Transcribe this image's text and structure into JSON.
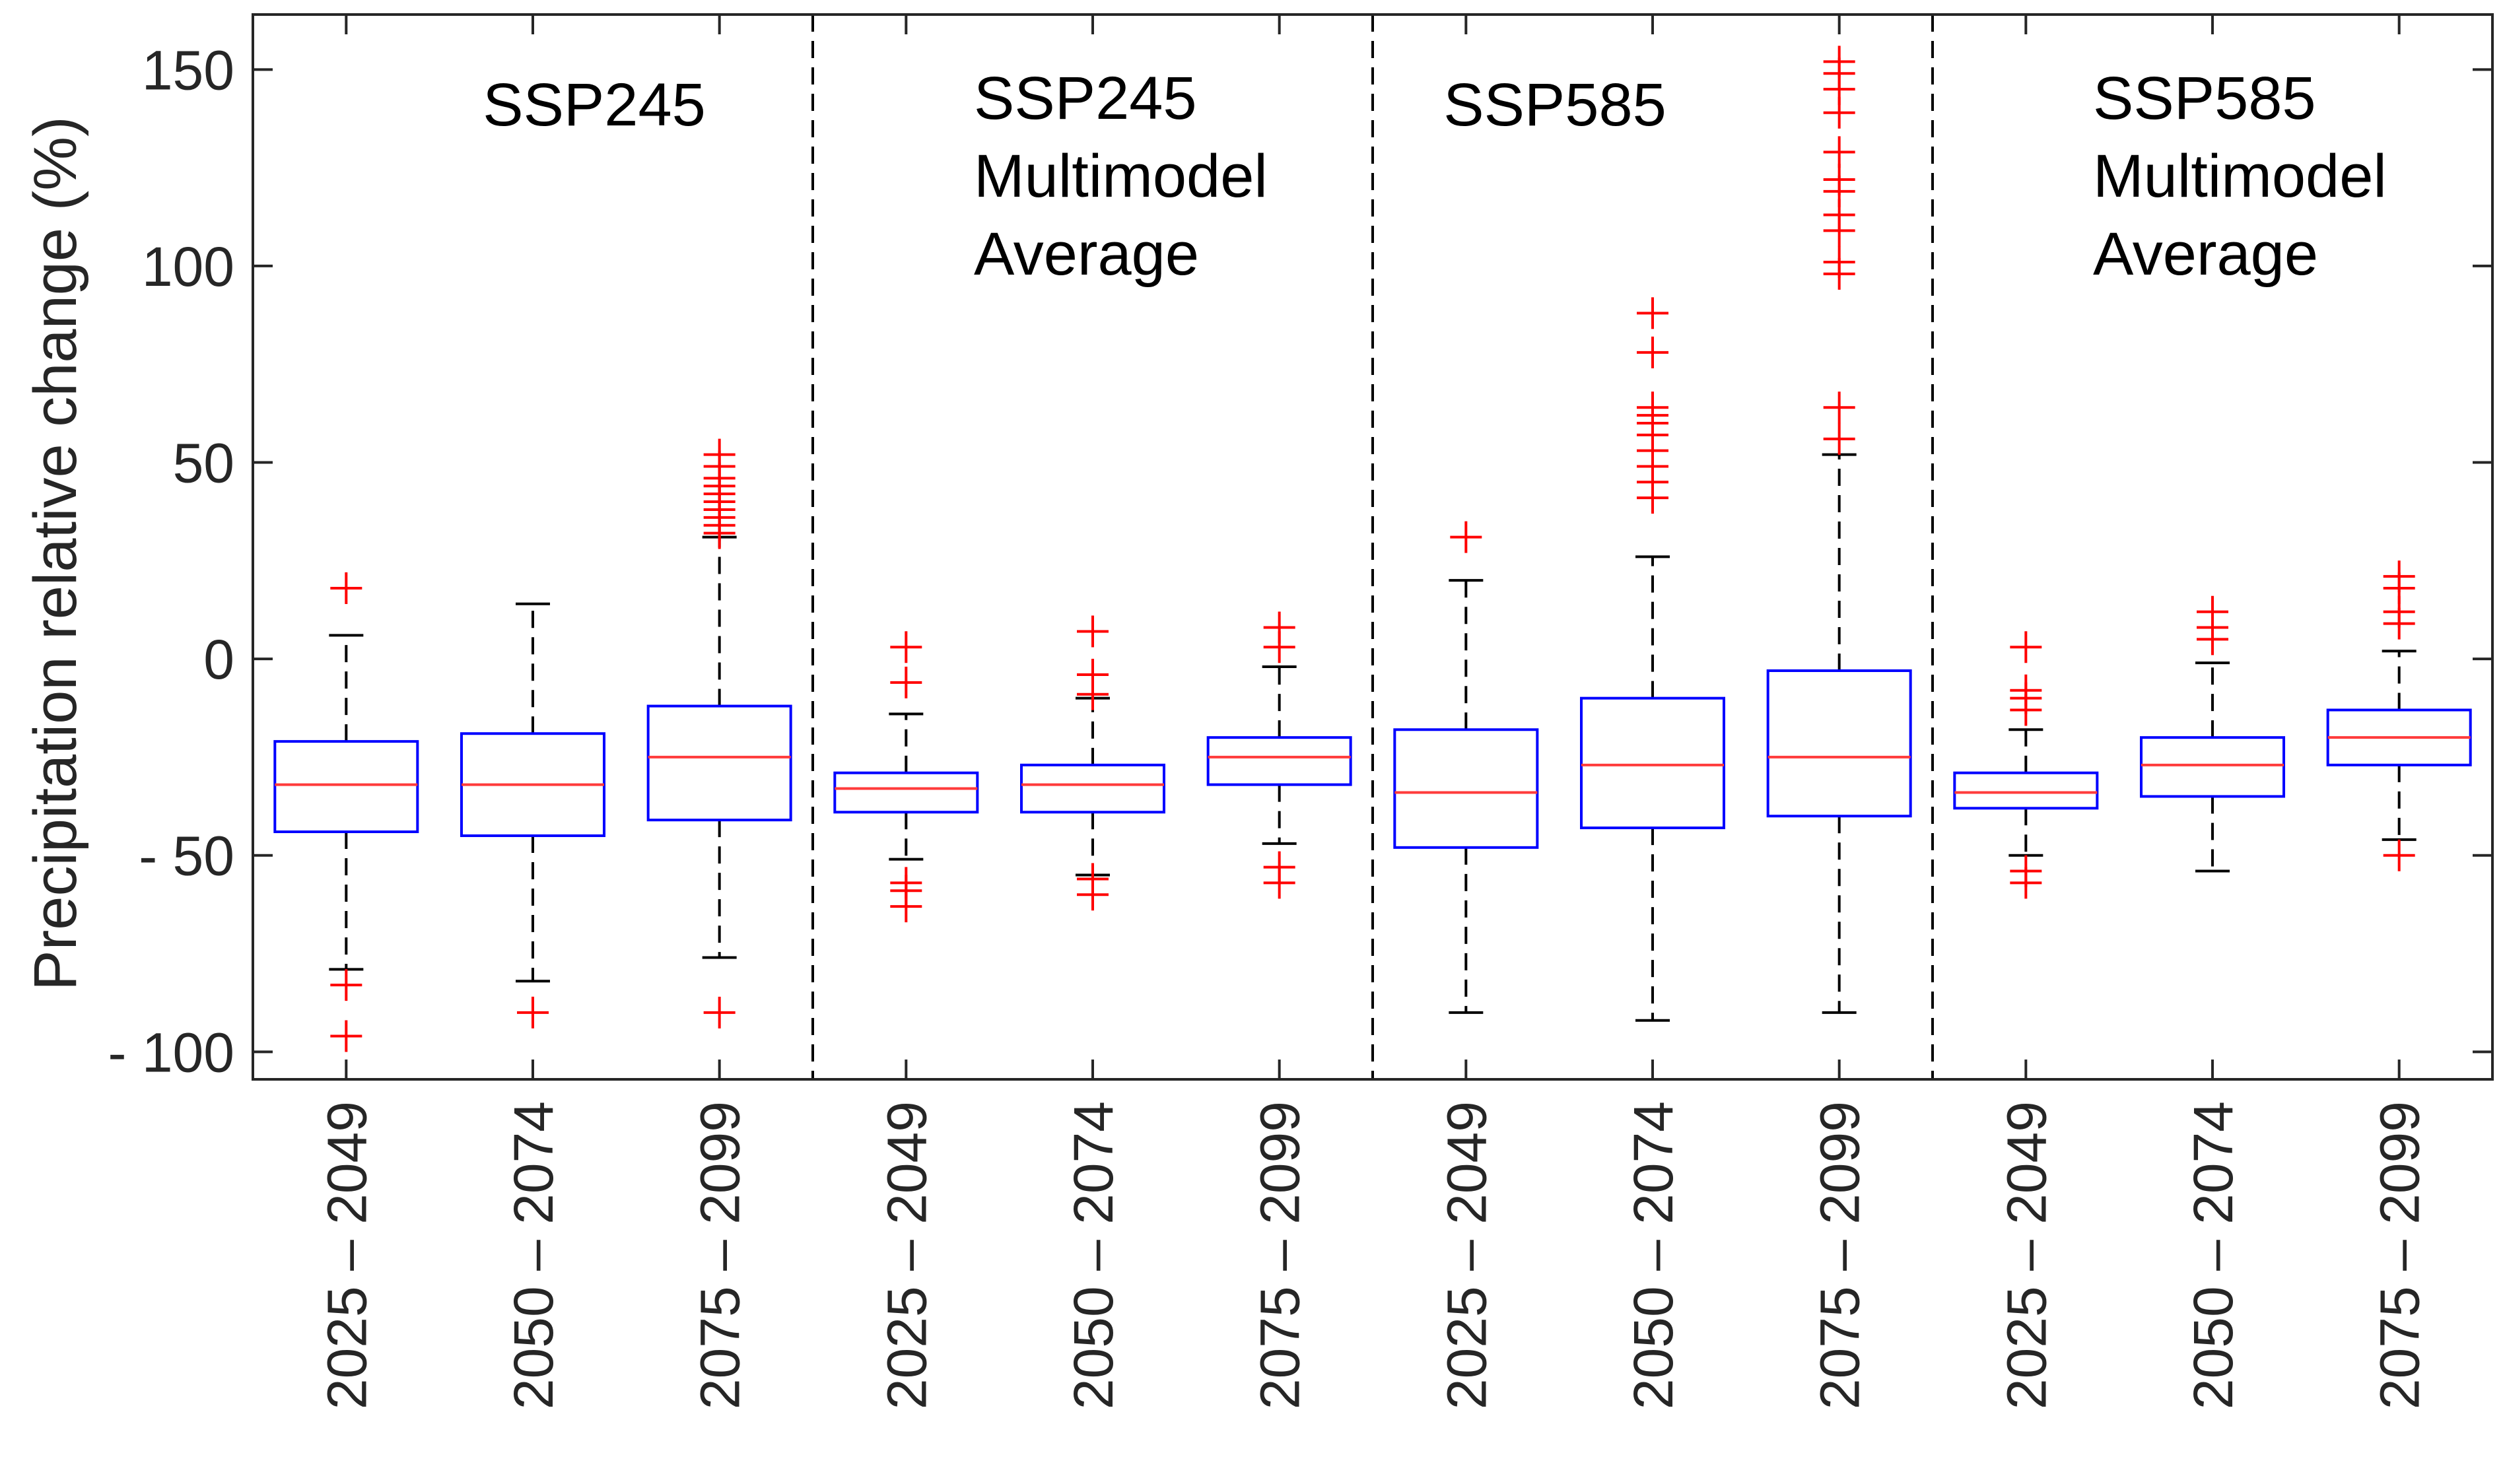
{
  "chart_data": {
    "type": "boxplot",
    "title": "",
    "xlabel": "",
    "ylabel": "Precipitation relative change (%)",
    "ylim": [
      -107,
      164
    ],
    "yticks": [
      150,
      100,
      50,
      0,
      -50,
      -100
    ],
    "ytick_labels": [
      "150",
      "100",
      "50",
      "0",
      "- 50",
      "- 100"
    ],
    "grid": false,
    "colors": {
      "box": "#0000ff",
      "median": "#ff3b3b",
      "whisker": "#000000",
      "outlier": "#ff0000",
      "separator": "#000000",
      "axis": "#262626"
    },
    "panels": [
      {
        "label_lines": [
          "SSP245"
        ]
      },
      {
        "label_lines": [
          "SSP245",
          "Multimodel",
          "Average"
        ]
      },
      {
        "label_lines": [
          "SSP585"
        ]
      },
      {
        "label_lines": [
          "SSP585",
          "Multimodel",
          "Average"
        ]
      }
    ],
    "categories": [
      "2025 – 2049",
      "2050 – 2074",
      "2075 – 2099",
      "2025 – 2049",
      "2050 – 2074",
      "2075 – 2099",
      "2025 – 2049",
      "2050 – 2074",
      "2075 – 2099",
      "2025 – 2049",
      "2050 – 2074",
      "2075 – 2099"
    ],
    "boxes": [
      {
        "panel": "SSP245",
        "period": "2025 – 2049",
        "whisker_low": -79,
        "q1": -44,
        "median": -32,
        "q3": -21,
        "whisker_high": 6,
        "outliers": [
          18,
          -83,
          -96
        ]
      },
      {
        "panel": "SSP245",
        "period": "2050 – 2074",
        "whisker_low": -82,
        "q1": -45,
        "median": -32,
        "q3": -19,
        "whisker_high": 14,
        "outliers": [
          -90
        ]
      },
      {
        "panel": "SSP245",
        "period": "2075 – 2099",
        "whisker_low": -76,
        "q1": -41,
        "median": -25,
        "q3": -12,
        "whisker_high": 31,
        "outliers": [
          32,
          34,
          36,
          38,
          40,
          42,
          44,
          46,
          49,
          52,
          -90
        ]
      },
      {
        "panel": "SSP245 Multimodel Average",
        "period": "2025 – 2049",
        "whisker_low": -51,
        "q1": -39,
        "median": -33,
        "q3": -29,
        "whisker_high": -14,
        "outliers": [
          3,
          -6,
          -57,
          -59,
          -63
        ]
      },
      {
        "panel": "SSP245 Multimodel Average",
        "period": "2050 – 2074",
        "whisker_low": -55,
        "q1": -39,
        "median": -32,
        "q3": -27,
        "whisker_high": -10,
        "outliers": [
          7,
          -4,
          -9,
          -56,
          -60
        ]
      },
      {
        "panel": "SSP245 Multimodel Average",
        "period": "2075 – 2099",
        "whisker_low": -47,
        "q1": -32,
        "median": -25,
        "q3": -20,
        "whisker_high": -2,
        "outliers": [
          8,
          3,
          -53,
          -57
        ]
      },
      {
        "panel": "SSP585",
        "period": "2025 – 2049",
        "whisker_low": -90,
        "q1": -48,
        "median": -34,
        "q3": -18,
        "whisker_high": 20,
        "outliers": [
          31
        ]
      },
      {
        "panel": "SSP585",
        "period": "2050 – 2074",
        "whisker_low": -92,
        "q1": -43,
        "median": -27,
        "q3": -10,
        "whisker_high": 26,
        "outliers": [
          41,
          45,
          49,
          53,
          57,
          60,
          62,
          64,
          78,
          88
        ]
      },
      {
        "panel": "SSP585",
        "period": "2075 – 2099",
        "whisker_low": -90,
        "q1": -40,
        "median": -25,
        "q3": -3,
        "whisker_high": 52,
        "outliers": [
          56,
          64,
          98,
          101,
          109,
          113,
          119,
          122,
          129,
          139,
          145,
          149,
          152
        ]
      },
      {
        "panel": "SSP585 Multimodel Average",
        "period": "2025 – 2049",
        "whisker_low": -50,
        "q1": -38,
        "median": -34,
        "q3": -29,
        "whisker_high": -18,
        "outliers": [
          3,
          -8,
          -10,
          -13,
          -54,
          -57
        ]
      },
      {
        "panel": "SSP585 Multimodel Average",
        "period": "2050 – 2074",
        "whisker_low": -54,
        "q1": -35,
        "median": -27,
        "q3": -20,
        "whisker_high": -1,
        "outliers": [
          12,
          8,
          5
        ]
      },
      {
        "panel": "SSP585 Multimodel Average",
        "period": "2075 – 2099",
        "whisker_low": -46,
        "q1": -27,
        "median": -20,
        "q3": -13,
        "whisker_high": 2,
        "outliers": [
          21,
          18,
          12,
          9,
          -50
        ]
      }
    ]
  }
}
